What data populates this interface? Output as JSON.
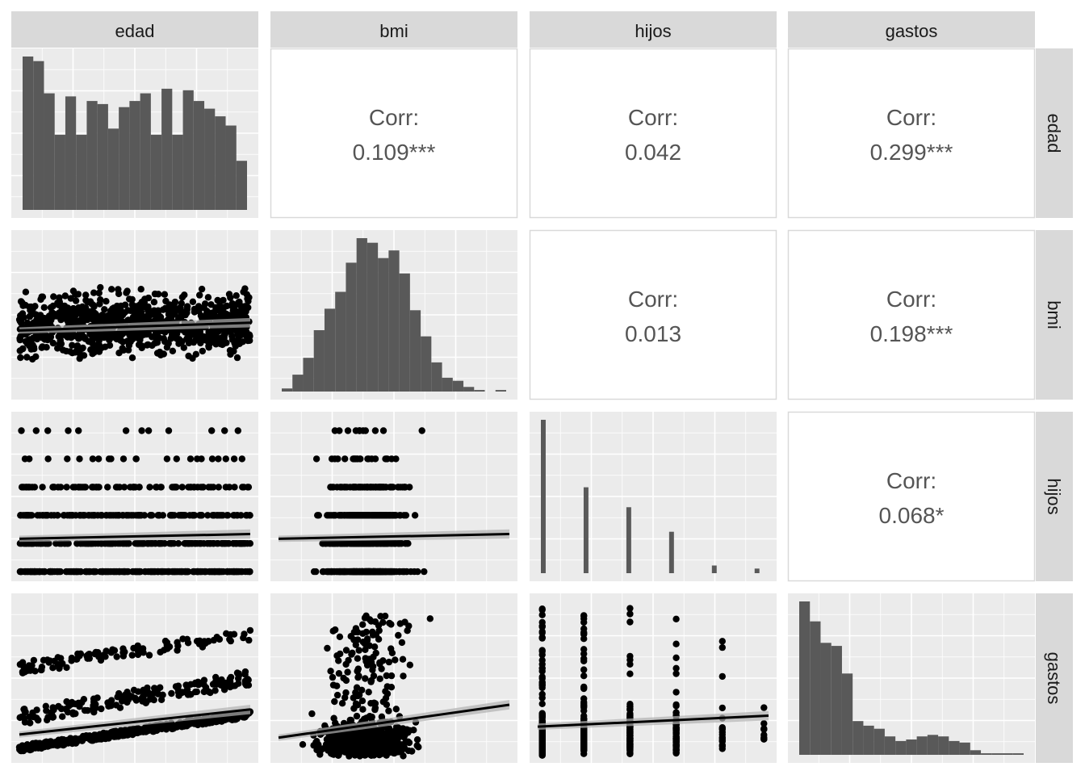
{
  "variables": [
    "edad",
    "bmi",
    "hijos",
    "gastos"
  ],
  "colors": {
    "panel_bg": "#ebebeb",
    "grid": "#ffffff",
    "strip_bg": "#d9d9d9",
    "strip_text": "#1a1a1a",
    "bar": "#595959",
    "point": "#000000",
    "corr_text": "#555555",
    "corr_border": "#d9d9d9",
    "ci_band": "#b0b0b0"
  },
  "chart_data": {
    "type": "scatterplot-matrix",
    "title": "",
    "correlations": [
      {
        "row": "edad",
        "col": "bmi",
        "label": "Corr:",
        "value": "0.109***"
      },
      {
        "row": "edad",
        "col": "hijos",
        "label": "Corr:",
        "value": "0.042"
      },
      {
        "row": "edad",
        "col": "gastos",
        "label": "Corr:",
        "value": "0.299***"
      },
      {
        "row": "bmi",
        "col": "hijos",
        "label": "Corr:",
        "value": "0.013"
      },
      {
        "row": "bmi",
        "col": "gastos",
        "label": "Corr:",
        "value": "0.198***"
      },
      {
        "row": "hijos",
        "col": "gastos",
        "label": "Corr:",
        "value": "0.068*"
      }
    ],
    "histograms": {
      "edad": [
        1.0,
        0.97,
        0.76,
        0.49,
        0.74,
        0.49,
        0.71,
        0.69,
        0.53,
        0.67,
        0.71,
        0.76,
        0.49,
        0.79,
        0.49,
        0.78,
        0.71,
        0.66,
        0.61,
        0.55,
        0.32
      ],
      "bmi": [
        0.02,
        0.11,
        0.22,
        0.4,
        0.54,
        0.65,
        0.84,
        1.0,
        0.97,
        0.87,
        0.92,
        0.77,
        0.53,
        0.36,
        0.19,
        0.09,
        0.07,
        0.03,
        0.01,
        0.0,
        0.01
      ],
      "hijos": [
        1.0,
        0.0,
        0.0,
        0.0,
        0.56,
        0.0,
        0.0,
        0.0,
        0.43,
        0.0,
        0.0,
        0.0,
        0.27,
        0.0,
        0.0,
        0.0,
        0.05,
        0.0,
        0.0,
        0.0,
        0.03
      ],
      "gastos": [
        1.0,
        0.87,
        0.73,
        0.71,
        0.53,
        0.22,
        0.19,
        0.17,
        0.12,
        0.09,
        0.1,
        0.12,
        0.13,
        0.12,
        0.09,
        0.08,
        0.03,
        0.01,
        0.01,
        0.01,
        0.01
      ]
    },
    "scatter_trends": [
      {
        "row": "bmi",
        "col": "edad",
        "y0": 0.4,
        "y1": 0.45
      },
      {
        "row": "hijos",
        "col": "edad",
        "y0": 0.23,
        "y1": 0.26
      },
      {
        "row": "hijos",
        "col": "bmi",
        "y0": 0.23,
        "y1": 0.26
      },
      {
        "row": "gastos",
        "col": "edad",
        "y0": 0.14,
        "y1": 0.3
      },
      {
        "row": "gastos",
        "col": "bmi",
        "y0": 0.12,
        "y1": 0.33
      },
      {
        "row": "gastos",
        "col": "hijos",
        "y0": 0.19,
        "y1": 0.26
      }
    ]
  }
}
